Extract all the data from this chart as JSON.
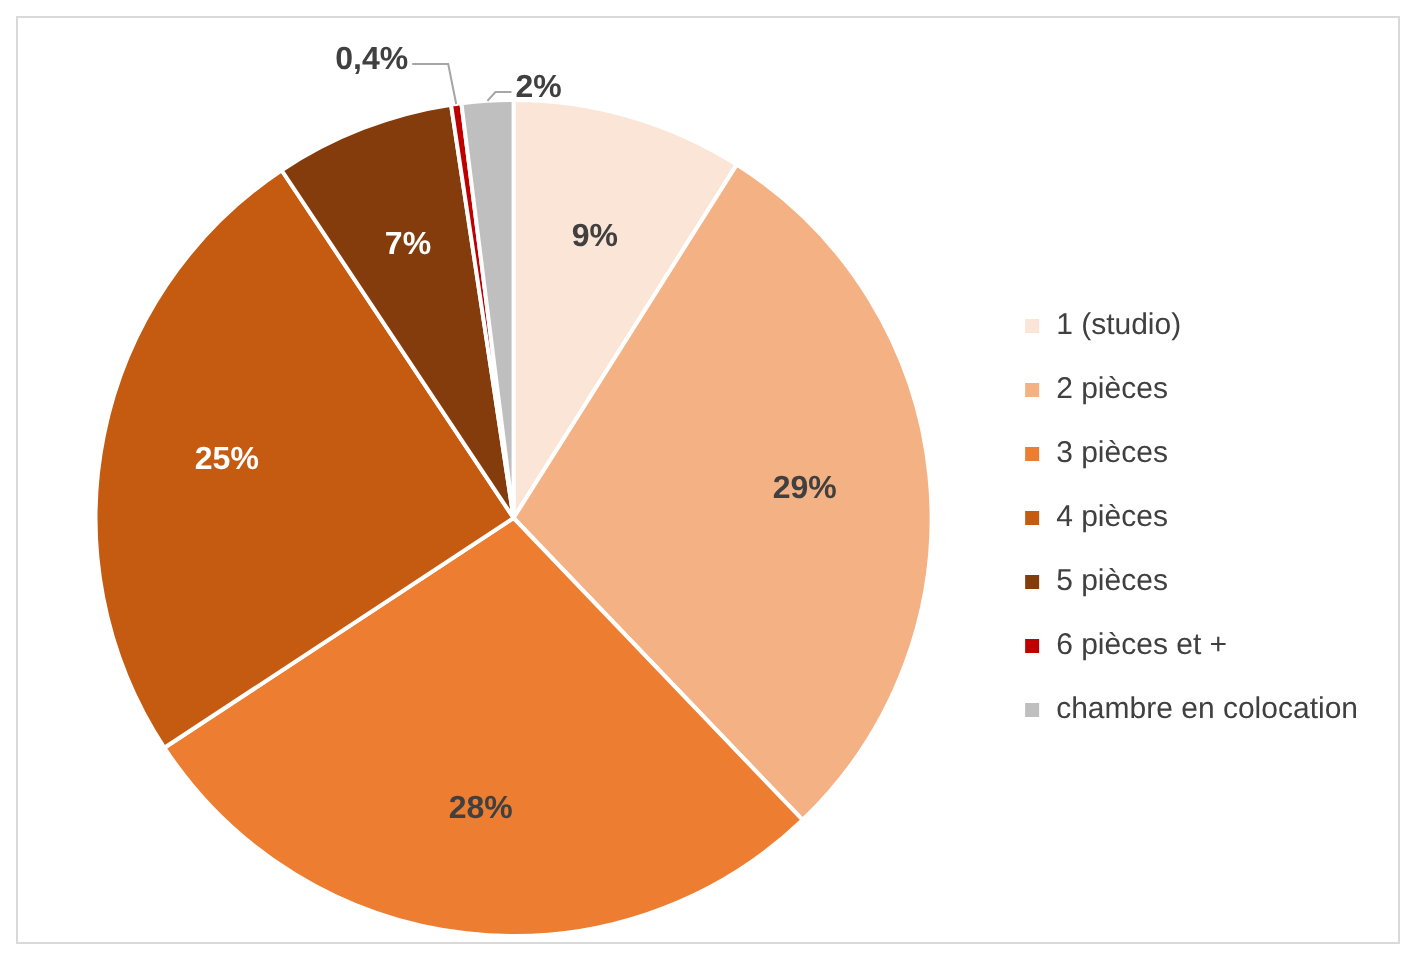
{
  "chart_data": {
    "type": "pie",
    "categories": [
      "1 (studio)",
      "2 pièces",
      "3 pièces",
      "4 pièces",
      "5 pièces",
      "6 pièces et +",
      "chambre en colocation"
    ],
    "values": [
      9,
      29,
      28,
      25,
      7,
      0.4,
      2
    ],
    "colors": [
      "#fbe5d6",
      "#f4b183",
      "#ed7d31",
      "#c55a11",
      "#843c0c",
      "#c00000",
      "#bfbfbf"
    ],
    "value_labels": [
      "9%",
      "29%",
      "28%",
      "25%",
      "7%",
      "0,4%",
      "2%"
    ],
    "legend": "right"
  }
}
